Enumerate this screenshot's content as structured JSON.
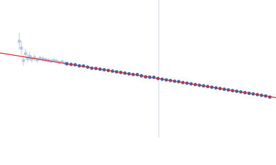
{
  "chart_data": {
    "type": "scatter",
    "xlim": [
      0,
      400
    ],
    "ylim": [
      0,
      200
    ],
    "series": [
      {
        "color": "#b8c8e4",
        "x": [
          28,
          31,
          34,
          37,
          40,
          43,
          46,
          50,
          54,
          58,
          62,
          66,
          70,
          74,
          78,
          82,
          86,
          90,
          94
        ],
        "values": [
          140,
          130,
          112,
          122,
          115,
          118,
          114,
          116,
          113,
          115,
          114,
          113,
          112,
          111,
          112,
          111,
          109,
          110,
          108
        ],
        "errors": [
          12,
          10,
          8,
          7,
          6,
          6,
          5,
          5,
          4,
          4,
          4,
          3,
          3,
          3,
          3,
          2,
          2,
          2,
          2
        ]
      },
      {
        "color": "#3f67b1",
        "x": [
          97,
          103,
          109,
          115,
          121,
          127,
          133,
          139,
          145,
          151,
          157,
          163,
          169,
          175,
          181,
          187,
          193,
          199,
          205,
          211,
          217,
          223,
          229,
          235,
          241,
          247,
          253,
          259,
          265,
          271,
          277,
          283,
          289,
          295,
          301,
          307,
          313,
          319,
          325,
          331,
          337,
          343,
          349,
          355,
          361,
          367,
          373,
          379,
          385,
          391
        ],
        "values": [
          107.2,
          106.3,
          105.8,
          104.3,
          104,
          102.4,
          100.8,
          100.4,
          99.4,
          98.5,
          97.5,
          96.5,
          95.5,
          94.6,
          93.6,
          92.6,
          91.6,
          91.5,
          89.7,
          88.2,
          87.7,
          87.5,
          85.8,
          84.8,
          83.8,
          82.9,
          81.9,
          81.3,
          79.9,
          79.0,
          78.0,
          77.0,
          76.0,
          75.1,
          74.1,
          73.1,
          72.1,
          71.2,
          70.2,
          69.2,
          68.2,
          67.3,
          66.3,
          65.3,
          64.3,
          63.4,
          62.4,
          61.4,
          60.4,
          58.8
        ]
      }
    ],
    "fit": {
      "color": "#d62728",
      "x": [
        0,
        400
      ],
      "values": [
        123,
        58
      ]
    },
    "vline": {
      "x": 230,
      "color": "#c8d4ea"
    }
  }
}
